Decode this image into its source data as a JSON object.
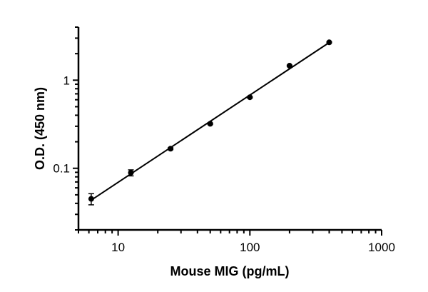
{
  "chart_data": {
    "type": "scatter",
    "title": "",
    "xlabel": "Mouse MIG (pg/mL)",
    "ylabel": "O.D. (450 nm)",
    "xscale": "log",
    "yscale": "log",
    "xlim": [
      5,
      1000
    ],
    "ylim": [
      0.02,
      4
    ],
    "xticks": [
      10,
      100,
      1000
    ],
    "xtick_labels": [
      "10",
      "100",
      "1000"
    ],
    "yticks": [
      0.1,
      1
    ],
    "ytick_labels": [
      "0.1",
      "1"
    ],
    "grid": false,
    "fit_line": true,
    "color": "#000000",
    "series": [
      {
        "x": [
          6.25,
          12.5,
          25,
          50,
          100,
          200,
          400
        ],
        "y": [
          0.045,
          0.089,
          0.167,
          0.32,
          0.64,
          1.46,
          2.69
        ],
        "y_err": [
          0.0065,
          0.007,
          0.004,
          0.006,
          0.01,
          0.02,
          0.03
        ]
      }
    ]
  }
}
